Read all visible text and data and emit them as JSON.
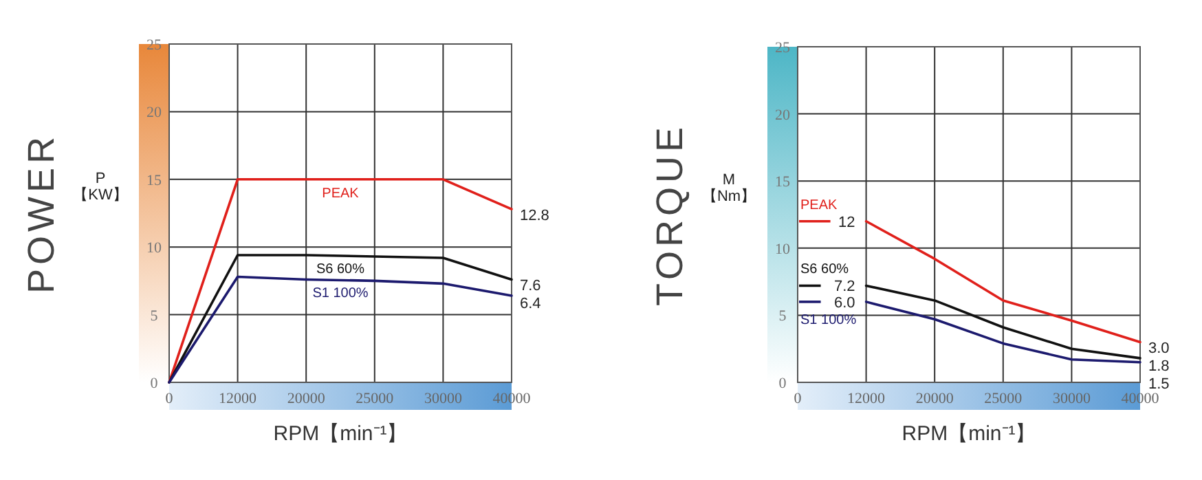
{
  "chart_data": [
    {
      "type": "line",
      "ylabel": "POWER",
      "xlabel": "RPM【min⁻¹】",
      "annotations": [
        "P\n【KW】"
      ],
      "categories": [
        "0",
        "12000",
        "20000",
        "25000",
        "30000",
        "40000"
      ],
      "ylim": [
        0,
        25
      ],
      "yticks": [
        0,
        5,
        10,
        15,
        20,
        25
      ],
      "grid": true,
      "series": [
        {
          "name": "PEAK",
          "color": "#e0201b",
          "values": [
            0,
            15,
            15,
            15,
            15,
            12.8
          ],
          "value_labels": [
            null,
            null,
            null,
            null,
            null,
            "12.8"
          ]
        },
        {
          "name": "S6 60%",
          "color": "#111111",
          "values": [
            0,
            9.4,
            9.4,
            9.3,
            9.2,
            7.6
          ],
          "value_labels": [
            null,
            null,
            null,
            null,
            null,
            "7.6"
          ]
        },
        {
          "name": "S1 100%",
          "color": "#1c1a6e",
          "values": [
            0,
            7.8,
            7.6,
            7.5,
            7.3,
            6.4
          ],
          "value_labels": [
            null,
            null,
            null,
            null,
            null,
            "6.4"
          ]
        }
      ]
    },
    {
      "type": "line",
      "ylabel": "TORQUE",
      "xlabel": "RPM【min⁻¹】",
      "annotations": [
        "M\n【Nm】"
      ],
      "categories": [
        "0",
        "12000",
        "20000",
        "25000",
        "30000",
        "40000"
      ],
      "ylim": [
        0,
        25
      ],
      "yticks": [
        0,
        5,
        10,
        15,
        20,
        25
      ],
      "grid": true,
      "series": [
        {
          "name": "PEAK",
          "color": "#e0201b",
          "values": [
            null,
            12,
            9.2,
            6.1,
            4.6,
            3.0
          ],
          "value_labels": [
            null,
            "12",
            null,
            null,
            null,
            "3.0"
          ]
        },
        {
          "name": "S6 60%",
          "color": "#111111",
          "values": [
            null,
            7.2,
            6.1,
            4.1,
            2.5,
            1.8
          ],
          "value_labels": [
            null,
            "7.2",
            null,
            null,
            null,
            "1.8"
          ]
        },
        {
          "name": "S1 100%",
          "color": "#1c1a6e",
          "values": [
            null,
            6.0,
            4.7,
            2.9,
            1.7,
            1.5
          ],
          "value_labels": [
            null,
            "6.0",
            null,
            null,
            null,
            "1.5"
          ]
        }
      ]
    }
  ]
}
